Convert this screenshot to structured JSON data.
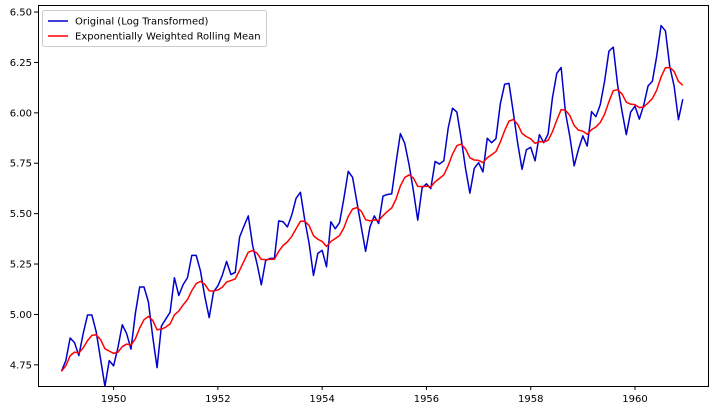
{
  "chart_data": {
    "type": "line",
    "title": "",
    "xlabel": "",
    "ylabel": "",
    "xlim": [
      1948.55,
      1961.4
    ],
    "ylim": [
      4.645,
      6.535
    ],
    "x_ticks": [
      1950,
      1952,
      1954,
      1956,
      1958,
      1960
    ],
    "x_tick_labels": [
      "1950",
      "1952",
      "1954",
      "1956",
      "1958",
      "1960"
    ],
    "y_ticks": [
      4.75,
      5.0,
      5.25,
      5.5,
      5.75,
      6.0,
      6.25,
      6.5
    ],
    "y_tick_labels": [
      "4.75",
      "5.00",
      "5.25",
      "5.50",
      "5.75",
      "6.00",
      "6.25",
      "6.50"
    ],
    "grid": false,
    "legend": {
      "location": "upper-left",
      "entries": [
        "Original (Log Transformed)",
        "Exponentially Weighted Rolling Mean"
      ]
    },
    "x_start": "1949-01",
    "x_end": "1960-12",
    "x_frequency": "monthly",
    "series": [
      {
        "name": "Original (Log Transformed)",
        "color": "#0000cc",
        "values": [
          4.718,
          4.771,
          4.883,
          4.86,
          4.796,
          4.905,
          4.997,
          4.997,
          4.913,
          4.779,
          4.644,
          4.771,
          4.745,
          4.836,
          4.949,
          4.905,
          4.828,
          5.004,
          5.136,
          5.136,
          5.063,
          4.89,
          4.736,
          4.942,
          4.977,
          5.011,
          5.182,
          5.094,
          5.148,
          5.182,
          5.293,
          5.293,
          5.215,
          5.088,
          4.984,
          5.112,
          5.142,
          5.193,
          5.263,
          5.198,
          5.209,
          5.384,
          5.438,
          5.489,
          5.342,
          5.252,
          5.147,
          5.268,
          5.278,
          5.278,
          5.464,
          5.46,
          5.434,
          5.493,
          5.576,
          5.606,
          5.468,
          5.352,
          5.193,
          5.303,
          5.318,
          5.236,
          5.46,
          5.425,
          5.455,
          5.576,
          5.71,
          5.68,
          5.557,
          5.434,
          5.313,
          5.434,
          5.489,
          5.451,
          5.587,
          5.595,
          5.598,
          5.753,
          5.897,
          5.849,
          5.743,
          5.613,
          5.468,
          5.628,
          5.648,
          5.624,
          5.759,
          5.746,
          5.762,
          5.924,
          6.023,
          6.004,
          5.872,
          5.724,
          5.602,
          5.724,
          5.753,
          5.707,
          5.874,
          5.852,
          5.872,
          6.045,
          6.142,
          6.146,
          6.001,
          5.849,
          5.72,
          5.817,
          5.829,
          5.762,
          5.892,
          5.852,
          5.895,
          6.075,
          6.196,
          6.225,
          6.001,
          5.883,
          5.737,
          5.82,
          5.886,
          5.835,
          6.006,
          5.981,
          6.04,
          6.157,
          6.306,
          6.326,
          6.138,
          6.009,
          5.892,
          6.004,
          6.033,
          5.969,
          6.038,
          6.133,
          6.157,
          6.282,
          6.433,
          6.407,
          6.23,
          6.133,
          5.966,
          6.068
        ]
      },
      {
        "name": "Exponentially Weighted Rolling Mean",
        "color": "#ff0000",
        "values": [
          4.718,
          4.745,
          4.795,
          4.813,
          4.809,
          4.834,
          4.87,
          4.896,
          4.899,
          4.875,
          4.83,
          4.818,
          4.807,
          4.813,
          4.84,
          4.853,
          4.848,
          4.879,
          4.932,
          4.974,
          4.99,
          4.97,
          4.924,
          4.927,
          4.937,
          4.953,
          4.998,
          5.017,
          5.047,
          5.074,
          5.118,
          5.153,
          5.164,
          5.149,
          5.117,
          5.116,
          5.121,
          5.135,
          5.161,
          5.168,
          5.176,
          5.219,
          5.264,
          5.309,
          5.317,
          5.304,
          5.273,
          5.272,
          5.273,
          5.274,
          5.313,
          5.342,
          5.36,
          5.387,
          5.425,
          5.462,
          5.463,
          5.441,
          5.391,
          5.373,
          5.362,
          5.337,
          5.362,
          5.376,
          5.391,
          5.43,
          5.486,
          5.523,
          5.53,
          5.512,
          5.47,
          5.464,
          5.469,
          5.466,
          5.49,
          5.511,
          5.528,
          5.572,
          5.637,
          5.679,
          5.692,
          5.677,
          5.635,
          5.634,
          5.636,
          5.633,
          5.658,
          5.675,
          5.692,
          5.738,
          5.795,
          5.837,
          5.845,
          5.821,
          5.777,
          5.766,
          5.764,
          5.753,
          5.777,
          5.792,
          5.808,
          5.855,
          5.912,
          5.959,
          5.967,
          5.943,
          5.898,
          5.882,
          5.871,
          5.849,
          5.857,
          5.856,
          5.864,
          5.906,
          5.964,
          6.016,
          6.013,
          5.987,
          5.937,
          5.914,
          5.909,
          5.894,
          5.917,
          5.93,
          5.952,
          5.993,
          6.056,
          6.11,
          6.115,
          6.094,
          6.053,
          6.043,
          6.041,
          6.026,
          6.029,
          6.049,
          6.071,
          6.113,
          6.178,
          6.224,
          6.225,
          6.206,
          6.155,
          6.137
        ]
      }
    ]
  }
}
